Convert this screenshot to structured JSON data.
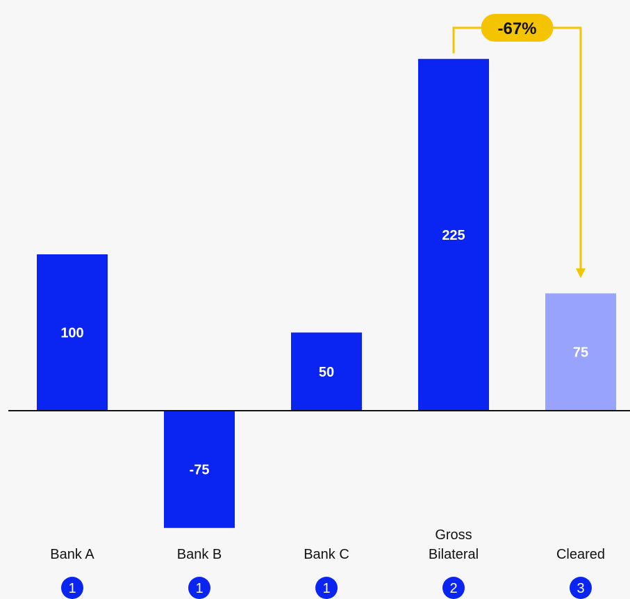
{
  "chart_data": {
    "type": "bar",
    "categories": [
      "Bank A",
      "Bank B",
      "Bank C",
      "Gross Bilateral",
      "Cleared"
    ],
    "category_lines": [
      [
        "Bank A"
      ],
      [
        "Bank B"
      ],
      [
        "Bank C"
      ],
      [
        "Gross",
        "Bilateral"
      ],
      [
        "Cleared"
      ]
    ],
    "values": [
      100,
      -75,
      50,
      225,
      75
    ],
    "value_labels": [
      "100",
      "-75",
      "50",
      "225",
      "75"
    ],
    "step_numbers": [
      "1",
      "1",
      "1",
      "2",
      "3"
    ],
    "bar_colors": [
      "#0a24f2",
      "#0a24f2",
      "#0a24f2",
      "#0a24f2",
      "#97a3fc"
    ],
    "annotation": {
      "text": "-67%",
      "from": "Gross Bilateral",
      "to": "Cleared",
      "color": "#f5c400"
    },
    "colors": {
      "badge": "#0a24f2",
      "axis": "#111111"
    }
  }
}
